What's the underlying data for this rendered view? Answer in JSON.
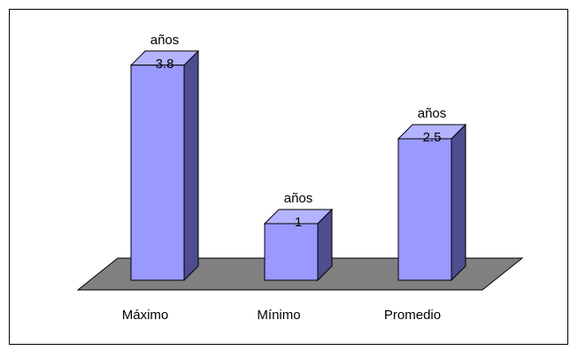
{
  "chart_data": {
    "type": "bar3d",
    "categories": [
      "Máximo",
      "Mínimo",
      "Promedio"
    ],
    "values": [
      3.8,
      1,
      2.5
    ],
    "unit": "años",
    "color": "#9999ff"
  }
}
